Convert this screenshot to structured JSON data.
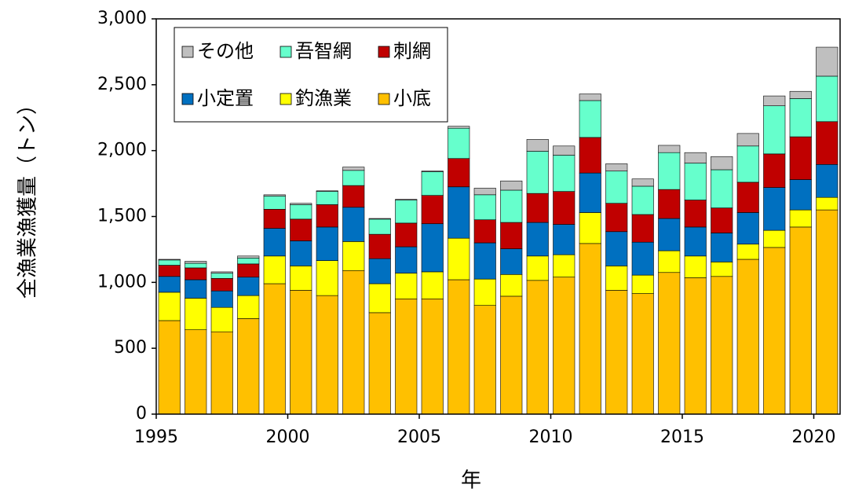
{
  "chart_data": {
    "type": "stacked_bar",
    "x": [
      1995,
      1996,
      1997,
      1998,
      1999,
      2000,
      2001,
      2002,
      2003,
      2004,
      2005,
      2006,
      2007,
      2008,
      2009,
      2010,
      2011,
      2012,
      2013,
      2014,
      2015,
      2016,
      2017,
      2018,
      2019,
      2020
    ],
    "xlim": [
      1995,
      2021
    ],
    "xticks": [
      1995,
      2000,
      2005,
      2010,
      2015,
      2020
    ],
    "ylim": [
      0,
      3000
    ],
    "yticks": [
      0,
      500,
      {
        "value": 1000,
        "label": "1,000"
      },
      {
        "value": 1500,
        "label": "1,500"
      },
      {
        "value": 2000,
        "label": "2,000"
      },
      {
        "value": 2500,
        "label": "2,500"
      },
      {
        "value": 3000,
        "label": "3,000"
      }
    ],
    "x_label": "年",
    "y_label": "全漁業漁獲量（トン）",
    "legend": "upper left",
    "series": [
      {
        "name": "その他",
        "color": "#bfbfbf",
        "values": [
          5,
          15,
          10,
          15,
          10,
          10,
          5,
          25,
          5,
          5,
          5,
          15,
          50,
          70,
          90,
          70,
          50,
          55,
          55,
          55,
          80,
          100,
          95,
          75,
          55,
          220
        ]
      },
      {
        "name": "吾智網",
        "color": "#66ffcc",
        "values": [
          40,
          35,
          40,
          45,
          100,
          110,
          100,
          115,
          115,
          175,
          180,
          230,
          190,
          245,
          320,
          275,
          280,
          245,
          215,
          280,
          280,
          290,
          275,
          365,
          290,
          345
        ]
      },
      {
        "name": "刺網",
        "color": "#c00000",
        "values": [
          85,
          90,
          95,
          100,
          145,
          165,
          170,
          165,
          185,
          180,
          215,
          215,
          175,
          200,
          220,
          250,
          270,
          215,
          210,
          220,
          205,
          190,
          230,
          255,
          325,
          325
        ]
      },
      {
        "name": "小定置",
        "color": "#0070c0",
        "values": [
          120,
          140,
          125,
          140,
          210,
          190,
          255,
          260,
          190,
          200,
          365,
          390,
          275,
          195,
          255,
          230,
          300,
          260,
          250,
          245,
          220,
          220,
          240,
          325,
          230,
          250
        ]
      },
      {
        "name": "釣漁業",
        "color": "#ffff00",
        "values": [
          215,
          240,
          185,
          175,
          210,
          185,
          265,
          220,
          220,
          195,
          205,
          315,
          200,
          165,
          185,
          170,
          235,
          185,
          140,
          165,
          165,
          110,
          115,
          130,
          130,
          95
        ]
      },
      {
        "name": "小底",
        "color": "#ffc000",
        "values": [
          710,
          640,
          625,
          725,
          990,
          940,
          900,
          1090,
          770,
          875,
          875,
          1020,
          825,
          895,
          1015,
          1040,
          1295,
          940,
          915,
          1075,
          1035,
          1045,
          1175,
          1265,
          1420,
          1550
        ]
      }
    ]
  }
}
